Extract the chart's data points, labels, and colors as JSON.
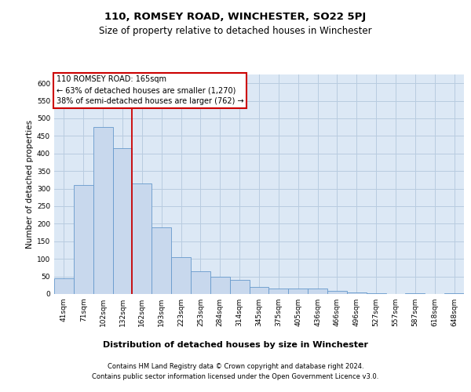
{
  "title": "110, ROMSEY ROAD, WINCHESTER, SO22 5PJ",
  "subtitle": "Size of property relative to detached houses in Winchester",
  "xlabel": "Distribution of detached houses by size in Winchester",
  "ylabel": "Number of detached properties",
  "categories": [
    "41sqm",
    "71sqm",
    "102sqm",
    "132sqm",
    "162sqm",
    "193sqm",
    "223sqm",
    "253sqm",
    "284sqm",
    "314sqm",
    "345sqm",
    "375sqm",
    "405sqm",
    "436sqm",
    "466sqm",
    "496sqm",
    "527sqm",
    "557sqm",
    "587sqm",
    "618sqm",
    "648sqm"
  ],
  "values": [
    45,
    310,
    475,
    415,
    315,
    190,
    105,
    65,
    50,
    40,
    20,
    15,
    15,
    15,
    10,
    5,
    2,
    1,
    2,
    1,
    2
  ],
  "bar_color": "#c8d8ed",
  "bar_edgecolor": "#6699cc",
  "plot_bg_color": "#dce8f5",
  "background_color": "#ffffff",
  "grid_color": "#b8cce0",
  "redline_index": 4,
  "annotation_title": "110 ROMSEY ROAD: 165sqm",
  "annotation_line1": "← 63% of detached houses are smaller (1,270)",
  "annotation_line2": "38% of semi-detached houses are larger (762) →",
  "annotation_box_edgecolor": "#cc0000",
  "ylim": [
    0,
    625
  ],
  "yticks": [
    0,
    50,
    100,
    150,
    200,
    250,
    300,
    350,
    400,
    450,
    500,
    550,
    600
  ],
  "footer1": "Contains HM Land Registry data © Crown copyright and database right 2024.",
  "footer2": "Contains public sector information licensed under the Open Government Licence v3.0.",
  "title_fontsize": 9.5,
  "subtitle_fontsize": 8.5,
  "xlabel_fontsize": 8,
  "ylabel_fontsize": 7.5,
  "tick_fontsize": 6.5,
  "annotation_fontsize": 7,
  "footer_fontsize": 6
}
